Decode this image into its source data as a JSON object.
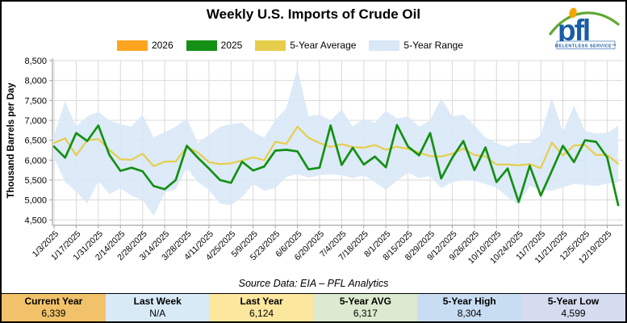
{
  "title": "Weekly U.S. Imports of Crude Oil",
  "logo": {
    "text": "pfl",
    "tagline": "RELENTLESS SERVICE™"
  },
  "legend": [
    {
      "label": "2026",
      "color": "#FFA421"
    },
    {
      "label": "2025",
      "color": "#149014"
    },
    {
      "label": "5-Year Average",
      "color": "#E6CE4C"
    },
    {
      "label": "5-Year Range",
      "color": "#D9E8F7"
    }
  ],
  "source_note": "Source Data: EIA – PFL Analytics",
  "stats": [
    {
      "label": "Current Year",
      "value": "6,339",
      "bg": "#F1C269"
    },
    {
      "label": "Last Week",
      "value": "N/A",
      "bg": "#D9EAF7"
    },
    {
      "label": "Last Year",
      "value": "6,124",
      "bg": "#FCE79E"
    },
    {
      "label": "5-Year AVG",
      "value": "6,317",
      "bg": "#DCEAD0"
    },
    {
      "label": "5-Year High",
      "value": "8,304",
      "bg": "#C9DDF2"
    },
    {
      "label": "5-Year Low",
      "value": "4,599",
      "bg": "#D6DCF0"
    }
  ],
  "chart_data": {
    "type": "line",
    "title": "Weekly U.S. Imports of Crude Oil",
    "xlabel": "",
    "ylabel": "Thousand Barrels per Day",
    "ylim": [
      4500,
      8500
    ],
    "ytick_step": 500,
    "grid": true,
    "legend_position": "top",
    "x": [
      "1/3/2025",
      "1/10/2025",
      "1/17/2025",
      "1/24/2025",
      "1/31/2025",
      "2/7/2025",
      "2/14/2025",
      "2/21/2025",
      "2/28/2025",
      "3/7/2025",
      "3/14/2025",
      "3/21/2025",
      "3/28/2025",
      "4/4/2025",
      "4/11/2025",
      "4/18/2025",
      "4/25/2025",
      "5/2/2025",
      "5/9/2025",
      "5/16/2025",
      "5/23/2025",
      "5/30/2025",
      "6/6/2025",
      "6/13/2025",
      "6/20/2025",
      "6/27/2025",
      "7/4/2025",
      "7/11/2025",
      "7/18/2025",
      "7/25/2025",
      "8/1/2025",
      "8/8/2025",
      "8/15/2025",
      "8/22/2025",
      "8/29/2025",
      "9/5/2025",
      "9/12/2025",
      "9/19/2025",
      "9/26/2025",
      "10/3/2025",
      "10/10/2025",
      "10/17/2025",
      "10/24/2025",
      "10/31/2025",
      "11/7/2025",
      "11/14/2025",
      "11/21/2025",
      "11/28/2025",
      "12/5/2025",
      "12/12/2025",
      "12/19/2025",
      "12/26/2025"
    ],
    "xtick_every": 2,
    "series": [
      {
        "name": "2026",
        "type": "line",
        "color": "#FFA421",
        "values": []
      },
      {
        "name": "2025",
        "type": "line",
        "color": "#149014",
        "values": [
          6340,
          6060,
          6680,
          6480,
          6870,
          6130,
          5730,
          5810,
          5720,
          5350,
          5270,
          5500,
          6360,
          6060,
          5790,
          5500,
          5430,
          5960,
          5740,
          5840,
          6240,
          6260,
          6220,
          5770,
          5810,
          6870,
          5880,
          6310,
          5890,
          6090,
          5820,
          6880,
          6340,
          6120,
          6680,
          5540,
          6060,
          6480,
          5750,
          6320,
          5450,
          5790,
          4950,
          5860,
          5110,
          5730,
          6360,
          5950,
          6500,
          6460,
          6070,
          4870
        ]
      },
      {
        "name": "5-Year Average",
        "type": "line",
        "color": "#E6CE4C",
        "values": [
          6430,
          6550,
          6120,
          6500,
          6530,
          6260,
          6020,
          6010,
          6160,
          5850,
          5960,
          5970,
          6330,
          6190,
          5950,
          5900,
          5920,
          5990,
          6070,
          6000,
          6460,
          6410,
          6840,
          6560,
          6430,
          6330,
          6400,
          6330,
          6310,
          6380,
          6260,
          6340,
          6280,
          6190,
          6100,
          6090,
          6160,
          6290,
          6130,
          6090,
          5890,
          5890,
          5870,
          5900,
          5800,
          6440,
          6120,
          6370,
          6380,
          6130,
          6130,
          5910
        ]
      },
      {
        "name": "5-Year Range",
        "type": "band",
        "color": "#D9E8F7",
        "upper": [
          6630,
          7480,
          6840,
          7100,
          7210,
          7000,
          6900,
          6840,
          7140,
          6570,
          6700,
          6840,
          7040,
          6430,
          6630,
          6840,
          6900,
          6940,
          6700,
          6570,
          7000,
          7310,
          8304,
          7100,
          7140,
          7000,
          7270,
          6840,
          7040,
          6940,
          7240,
          7040,
          7100,
          6840,
          7000,
          7550,
          7100,
          7140,
          6870,
          6570,
          6430,
          6330,
          6430,
          6430,
          6630,
          7570,
          6700,
          7370,
          6730,
          6670,
          6680,
          6870
        ],
        "lower": [
          6060,
          5450,
          5210,
          4910,
          5480,
          5150,
          5290,
          5110,
          5000,
          4599,
          5180,
          5280,
          5800,
          5450,
          5250,
          4910,
          4870,
          5070,
          5400,
          5230,
          5300,
          5580,
          5650,
          5560,
          5620,
          5650,
          5620,
          5550,
          5620,
          5450,
          5250,
          5480,
          5690,
          5550,
          5600,
          5300,
          5450,
          5500,
          5480,
          5400,
          5310,
          5070,
          4880,
          5350,
          5250,
          5230,
          5320,
          5400,
          5380,
          5350,
          5410,
          5440
        ]
      }
    ]
  }
}
